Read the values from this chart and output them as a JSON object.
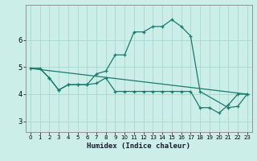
{
  "xlabel": "Humidex (Indice chaleur)",
  "background_color": "#cceee8",
  "grid_color": "#aaddcc",
  "line_color": "#1a7a6e",
  "xlim": [
    -0.5,
    23.5
  ],
  "ylim": [
    2.6,
    7.3
  ],
  "yticks": [
    3,
    4,
    5,
    6
  ],
  "xticks": [
    0,
    1,
    2,
    3,
    4,
    5,
    6,
    7,
    8,
    9,
    10,
    11,
    12,
    13,
    14,
    15,
    16,
    17,
    18,
    19,
    20,
    21,
    22,
    23
  ],
  "line1_x": [
    0,
    1,
    2,
    3,
    4,
    5,
    6,
    7,
    8,
    9,
    10,
    11,
    12,
    13,
    14,
    15,
    16,
    17,
    18,
    21,
    22,
    23
  ],
  "line1_y": [
    4.95,
    4.95,
    4.6,
    4.15,
    4.35,
    4.35,
    4.35,
    4.75,
    4.85,
    5.45,
    5.45,
    6.3,
    6.3,
    6.5,
    6.5,
    6.75,
    6.5,
    6.15,
    4.1,
    3.5,
    3.55,
    4.0
  ],
  "line2_x": [
    2,
    3,
    4,
    5,
    6,
    7,
    8,
    9,
    10,
    11,
    12,
    13,
    14,
    15,
    16,
    17,
    18,
    19,
    20,
    21,
    22,
    23
  ],
  "line2_y": [
    4.6,
    4.15,
    4.35,
    4.35,
    4.35,
    4.4,
    4.6,
    4.1,
    4.1,
    4.1,
    4.1,
    4.1,
    4.1,
    4.1,
    4.1,
    4.1,
    3.5,
    3.5,
    3.3,
    3.6,
    4.0,
    4.0
  ],
  "line3_x": [
    0,
    23
  ],
  "line3_y": [
    4.95,
    4.0
  ],
  "line4_x": [
    0,
    1,
    2
  ],
  "line4_y": [
    4.95,
    4.95,
    4.6
  ]
}
